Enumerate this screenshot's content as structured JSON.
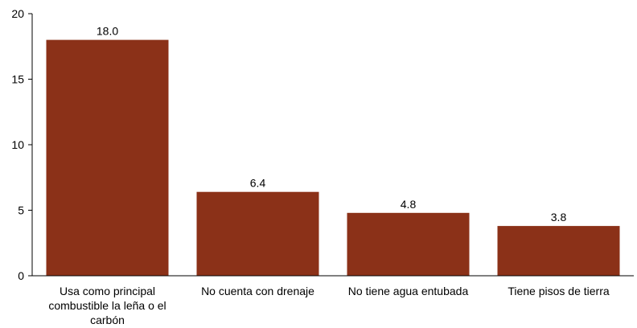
{
  "chart_data": {
    "type": "bar",
    "categories": [
      "Usa como principal combustible la leña o el carbón",
      "No cuenta con drenaje",
      "No tiene agua entubada",
      "Tiene pisos de tierra"
    ],
    "category_label_lines": [
      [
        "Usa como principal",
        "combustible la leña o el",
        "carbón"
      ],
      [
        "No cuenta con drenaje"
      ],
      [
        "No tiene agua entubada"
      ],
      [
        "Tiene pisos de tierra"
      ]
    ],
    "values": [
      18.0,
      6.4,
      4.8,
      3.8
    ],
    "data_labels": [
      "18.0",
      "6.4",
      "4.8",
      "3.8"
    ],
    "y_ticks": [
      0,
      5,
      10,
      15,
      20
    ],
    "ylim": [
      0,
      20
    ],
    "title": "",
    "xlabel": "",
    "ylabel": "",
    "grid": false,
    "legend": "none",
    "bar_color": "#8B3118",
    "axis_color": "#000000"
  }
}
